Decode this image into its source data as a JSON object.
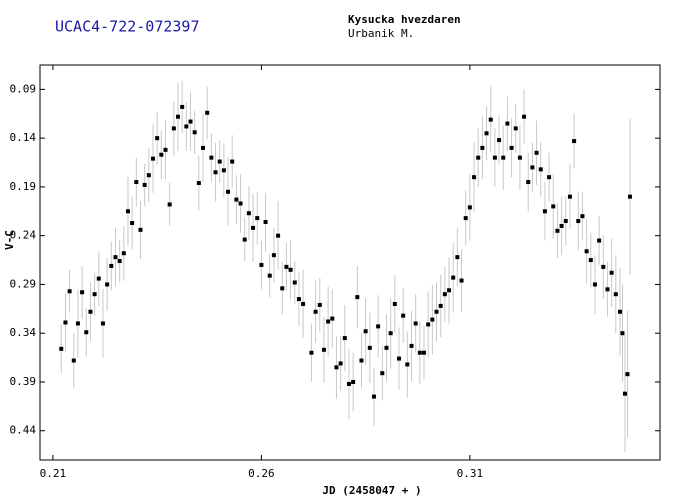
{
  "chart_data": {
    "type": "scatter",
    "title": "UCAC4-722-072397",
    "observatory": "Kysucka hvezdaren",
    "observer": "Urbanik M.",
    "xlabel": "JD (2458047 + )",
    "ylabel": "V-C",
    "xlim": [
      0.2069,
      0.3556
    ],
    "ylim": [
      0.47,
      0.065
    ],
    "xticks": [
      0.21,
      0.26,
      0.31
    ],
    "yticks": [
      0.09,
      0.14,
      0.19,
      0.24,
      0.29,
      0.34,
      0.39,
      0.44
    ],
    "color": "#000000",
    "error_color": "#c8c8c8",
    "series": [
      {
        "x": [
          0.212,
          0.213,
          0.214,
          0.215,
          0.216,
          0.217,
          0.218,
          0.219,
          0.22,
          0.221,
          0.222,
          0.223,
          0.224,
          0.225,
          0.226,
          0.227,
          0.228,
          0.229,
          0.23,
          0.231,
          0.232,
          0.233,
          0.234,
          0.235,
          0.236,
          0.237,
          0.238,
          0.239,
          0.24,
          0.241,
          0.242,
          0.243,
          0.244,
          0.245,
          0.246,
          0.247,
          0.248,
          0.249,
          0.25,
          0.251,
          0.252,
          0.253,
          0.254,
          0.255,
          0.256,
          0.257,
          0.258,
          0.259,
          0.26,
          0.261,
          0.262,
          0.263,
          0.264,
          0.265,
          0.266,
          0.267,
          0.268,
          0.269,
          0.27,
          0.272,
          0.273,
          0.274,
          0.275,
          0.276,
          0.277,
          0.278,
          0.279,
          0.28,
          0.281,
          0.282,
          0.283,
          0.284,
          0.285,
          0.286,
          0.287,
          0.288,
          0.289,
          0.29,
          0.291,
          0.292,
          0.293,
          0.294,
          0.295,
          0.296,
          0.297,
          0.298,
          0.299,
          0.3,
          0.301,
          0.302,
          0.303,
          0.304,
          0.305,
          0.306,
          0.307,
          0.308,
          0.309,
          0.31,
          0.311,
          0.312,
          0.313,
          0.314,
          0.315,
          0.316,
          0.317,
          0.318,
          0.319,
          0.32,
          0.321,
          0.322,
          0.323,
          0.324,
          0.325,
          0.326,
          0.327,
          0.328,
          0.329,
          0.33,
          0.331,
          0.332,
          0.333,
          0.334,
          0.335,
          0.336,
          0.337,
          0.338,
          0.339,
          0.34,
          0.341,
          0.342,
          0.343,
          0.344,
          0.345,
          0.346,
          0.3466,
          0.3472,
          0.3478,
          0.3484
        ],
        "values": [
          0.356,
          0.329,
          0.297,
          0.368,
          0.33,
          0.298,
          0.339,
          0.318,
          0.3,
          0.284,
          0.33,
          0.29,
          0.271,
          0.262,
          0.266,
          0.258,
          0.215,
          0.227,
          0.185,
          0.234,
          0.188,
          0.178,
          0.161,
          0.14,
          0.157,
          0.152,
          0.208,
          0.13,
          0.118,
          0.108,
          0.128,
          0.123,
          0.134,
          0.186,
          0.15,
          0.114,
          0.16,
          0.175,
          0.164,
          0.173,
          0.195,
          0.164,
          0.203,
          0.207,
          0.244,
          0.217,
          0.232,
          0.222,
          0.27,
          0.226,
          0.281,
          0.26,
          0.24,
          0.294,
          0.272,
          0.275,
          0.288,
          0.305,
          0.31,
          0.36,
          0.318,
          0.311,
          0.357,
          0.328,
          0.325,
          0.375,
          0.371,
          0.345,
          0.392,
          0.39,
          0.303,
          0.368,
          0.338,
          0.355,
          0.405,
          0.333,
          0.381,
          0.355,
          0.34,
          0.31,
          0.366,
          0.322,
          0.372,
          0.353,
          0.33,
          0.36,
          0.36,
          0.331,
          0.326,
          0.318,
          0.312,
          0.3,
          0.296,
          0.283,
          0.262,
          0.286,
          0.222,
          0.211,
          0.18,
          0.16,
          0.15,
          0.135,
          0.121,
          0.16,
          0.142,
          0.16,
          0.125,
          0.15,
          0.13,
          0.16,
          0.118,
          0.185,
          0.17,
          0.155,
          0.172,
          0.215,
          0.18,
          0.21,
          0.235,
          0.23,
          0.225,
          0.2,
          0.143,
          0.225,
          0.22,
          0.256,
          0.265,
          0.29,
          0.245,
          0.272,
          0.295,
          0.278,
          0.3,
          0.318,
          0.34,
          0.402,
          0.382,
          0.2
        ],
        "errors": [
          0.025,
          0.03,
          0.022,
          0.028,
          0.035,
          0.027,
          0.025,
          0.03,
          0.022,
          0.028,
          0.035,
          0.027,
          0.025,
          0.03,
          0.022,
          0.028,
          0.035,
          0.027,
          0.025,
          0.03,
          0.022,
          0.028,
          0.035,
          0.027,
          0.025,
          0.03,
          0.022,
          0.028,
          0.035,
          0.027,
          0.025,
          0.03,
          0.022,
          0.028,
          0.035,
          0.027,
          0.025,
          0.03,
          0.022,
          0.028,
          0.035,
          0.027,
          0.025,
          0.03,
          0.022,
          0.028,
          0.035,
          0.027,
          0.025,
          0.03,
          0.022,
          0.028,
          0.035,
          0.027,
          0.025,
          0.03,
          0.022,
          0.028,
          0.035,
          0.03,
          0.032,
          0.028,
          0.034,
          0.036,
          0.03,
          0.032,
          0.028,
          0.034,
          0.036,
          0.03,
          0.032,
          0.028,
          0.034,
          0.036,
          0.03,
          0.032,
          0.028,
          0.034,
          0.036,
          0.03,
          0.032,
          0.028,
          0.034,
          0.036,
          0.03,
          0.032,
          0.028,
          0.034,
          0.036,
          0.03,
          0.032,
          0.028,
          0.034,
          0.036,
          0.03,
          0.032,
          0.028,
          0.034,
          0.036,
          0.03,
          0.032,
          0.028,
          0.034,
          0.03,
          0.025,
          0.033,
          0.028,
          0.03,
          0.025,
          0.033,
          0.028,
          0.03,
          0.025,
          0.033,
          0.028,
          0.03,
          0.025,
          0.033,
          0.028,
          0.03,
          0.025,
          0.033,
          0.028,
          0.03,
          0.025,
          0.033,
          0.028,
          0.03,
          0.025,
          0.033,
          0.028,
          0.035,
          0.04,
          0.045,
          0.05,
          0.06,
          0.065,
          0.08
        ]
      }
    ]
  }
}
